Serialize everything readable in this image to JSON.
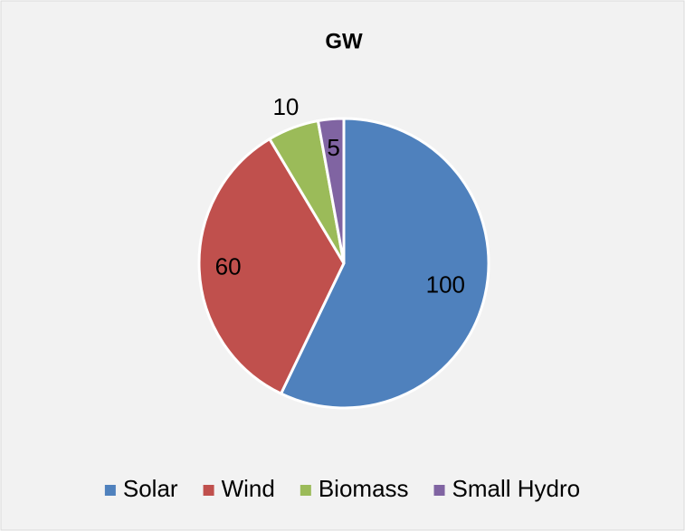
{
  "chart_data": {
    "type": "pie",
    "title": "GW",
    "categories": [
      "Solar",
      "Wind",
      "Biomass",
      "Small Hydro"
    ],
    "values": [
      100,
      60,
      10,
      5
    ],
    "colors": [
      "#4f81bd",
      "#c0504d",
      "#9bbb59",
      "#8064a2"
    ],
    "legend": "bottom"
  }
}
